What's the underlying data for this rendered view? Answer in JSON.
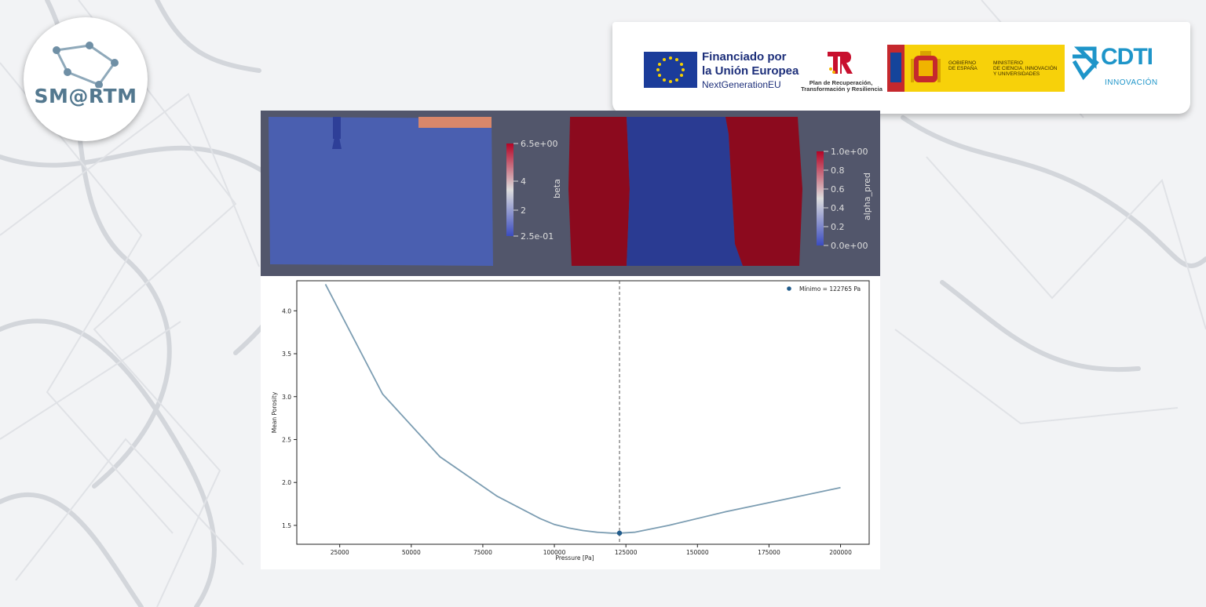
{
  "branding": {
    "logo_text": "SM@RTM",
    "eu_line1": "Financiado por",
    "eu_line2": "la Unión Europea",
    "eu_line3": "NextGenerationEU",
    "recovery_line1": "Plan de Recuperación,",
    "recovery_line2": "Transformación y Resiliencia",
    "gob_text": "GOBIERNO\nDE ESPAÑA",
    "ministry_text": "MINISTERIO\nDE CIENCIA, INNOVACIÓN\nY UNIVERSIDADES",
    "cdti_text": "CDTI",
    "cdti_sub": "INNOVACIÓN"
  },
  "paraview": {
    "beta_label": "beta",
    "beta_ticks": [
      "6.5e+00",
      "4",
      "2",
      "2.5e-01"
    ],
    "alpha_label": "alpha_pred",
    "alpha_ticks": [
      "1.0e+00",
      "0.8",
      "0.6",
      "0.4",
      "0.2",
      "0.0e+00"
    ]
  },
  "colors": {
    "background_panel": "#52566b",
    "beta_field": "#4a5fb0",
    "red_field": "#8c0a1e",
    "blue_field": "#2a3b92",
    "line": "#7c9db2",
    "marker": "#215c8c"
  },
  "chart_data": {
    "type": "line",
    "title": "",
    "xlabel": "Pressure [Pa]",
    "ylabel": "Mean Porosity",
    "xlim": [
      10000,
      210000
    ],
    "ylim": [
      1.28,
      4.35
    ],
    "xticks": [
      25000,
      50000,
      75000,
      100000,
      125000,
      150000,
      175000,
      200000
    ],
    "yticks": [
      1.5,
      2.0,
      2.5,
      3.0,
      3.5,
      4.0
    ],
    "grid": false,
    "legend_position": "top-right",
    "legend_label": "Mínimo = 122765 Pa",
    "series": [
      {
        "x": [
          20000,
          40000,
          60000,
          80000,
          95000,
          100000,
          105000,
          110000,
          115000,
          120000,
          122765,
          128000,
          140000,
          160000,
          180000,
          200000
        ],
        "y": [
          4.31,
          3.03,
          2.3,
          1.84,
          1.58,
          1.51,
          1.47,
          1.44,
          1.42,
          1.41,
          1.41,
          1.42,
          1.5,
          1.66,
          1.8,
          1.94
        ]
      }
    ],
    "minimum": {
      "x": 122765,
      "y": 1.41
    }
  }
}
